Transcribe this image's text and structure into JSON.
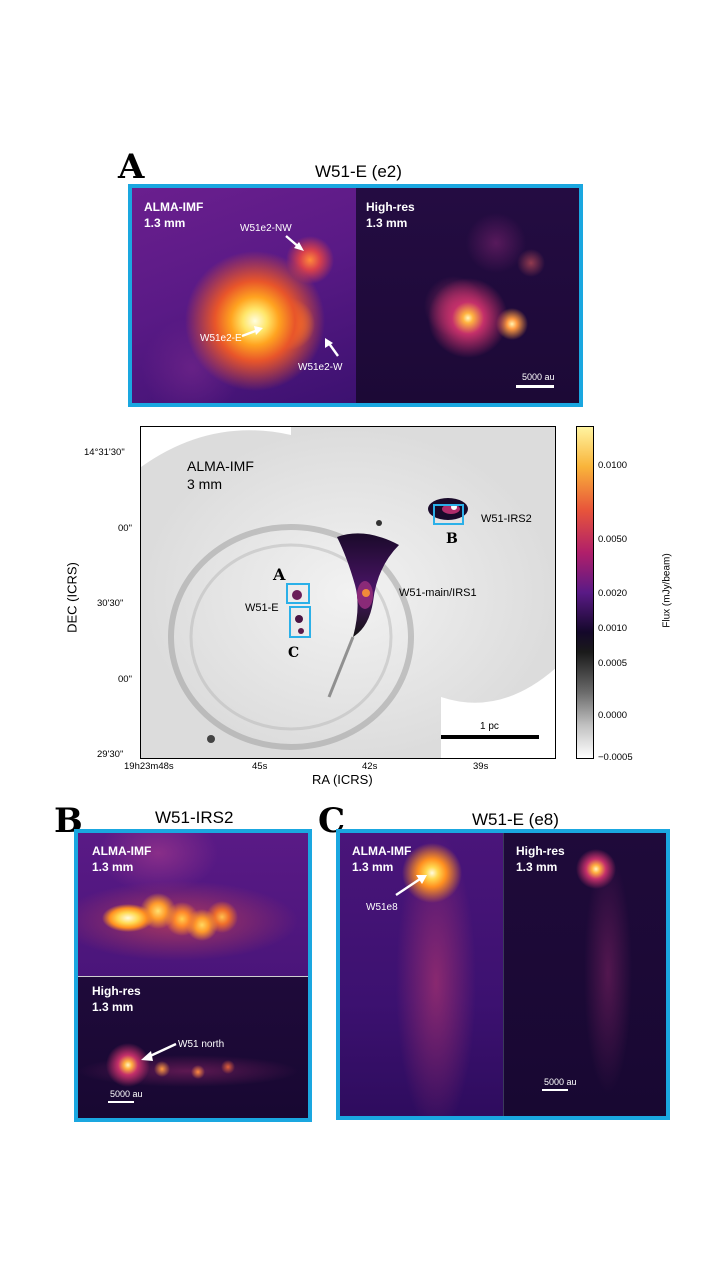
{
  "panel_a": {
    "letter": "A",
    "title": "W51-E (e2)",
    "left": {
      "label": "ALMA-IMF\n1.3 mm",
      "sources": [
        "W51e2-NW",
        "W51e2-E",
        "W51e2-W"
      ]
    },
    "right": {
      "label": "High-res\n1.3 mm",
      "scale": "5000 au"
    }
  },
  "main_map": {
    "label": "ALMA-IMF\n3 mm",
    "xlabel": "RA (ICRS)",
    "ylabel": "DEC (ICRS)",
    "ra_ticks": [
      "19h23m48s",
      "45s",
      "42s",
      "39s"
    ],
    "dec_ticks": [
      "14°31'30\"",
      "00\"",
      "30'30\"",
      "00\"",
      "29'30\""
    ],
    "regions": [
      "W51-IRS2",
      "W51-main/IRS1",
      "W51-E"
    ],
    "box_letters": [
      "A",
      "B",
      "C"
    ],
    "scale": "1 pc",
    "colorbar": {
      "label": "Flux (mJy/beam)",
      "ticks": [
        "0.0100",
        "0.0050",
        "0.0020",
        "0.0010",
        "0.0005",
        "0.0000",
        "−0.0005"
      ]
    }
  },
  "panel_b": {
    "letter": "B",
    "title": "W51-IRS2",
    "top": {
      "label": "ALMA-IMF\n1.3 mm"
    },
    "bottom": {
      "label": "High-res\n1.3 mm",
      "source": "W51 north",
      "scale": "5000 au"
    }
  },
  "panel_c": {
    "letter": "C",
    "title": "W51-E (e8)",
    "left": {
      "label": "ALMA-IMF\n1.3 mm",
      "source": "W51e8"
    },
    "right": {
      "label": "High-res\n1.3 mm",
      "scale": "5000 au"
    }
  },
  "colors": {
    "frame": "#1aa7e0",
    "background_dark": "#1a0b30",
    "accent": "#f5a623"
  }
}
